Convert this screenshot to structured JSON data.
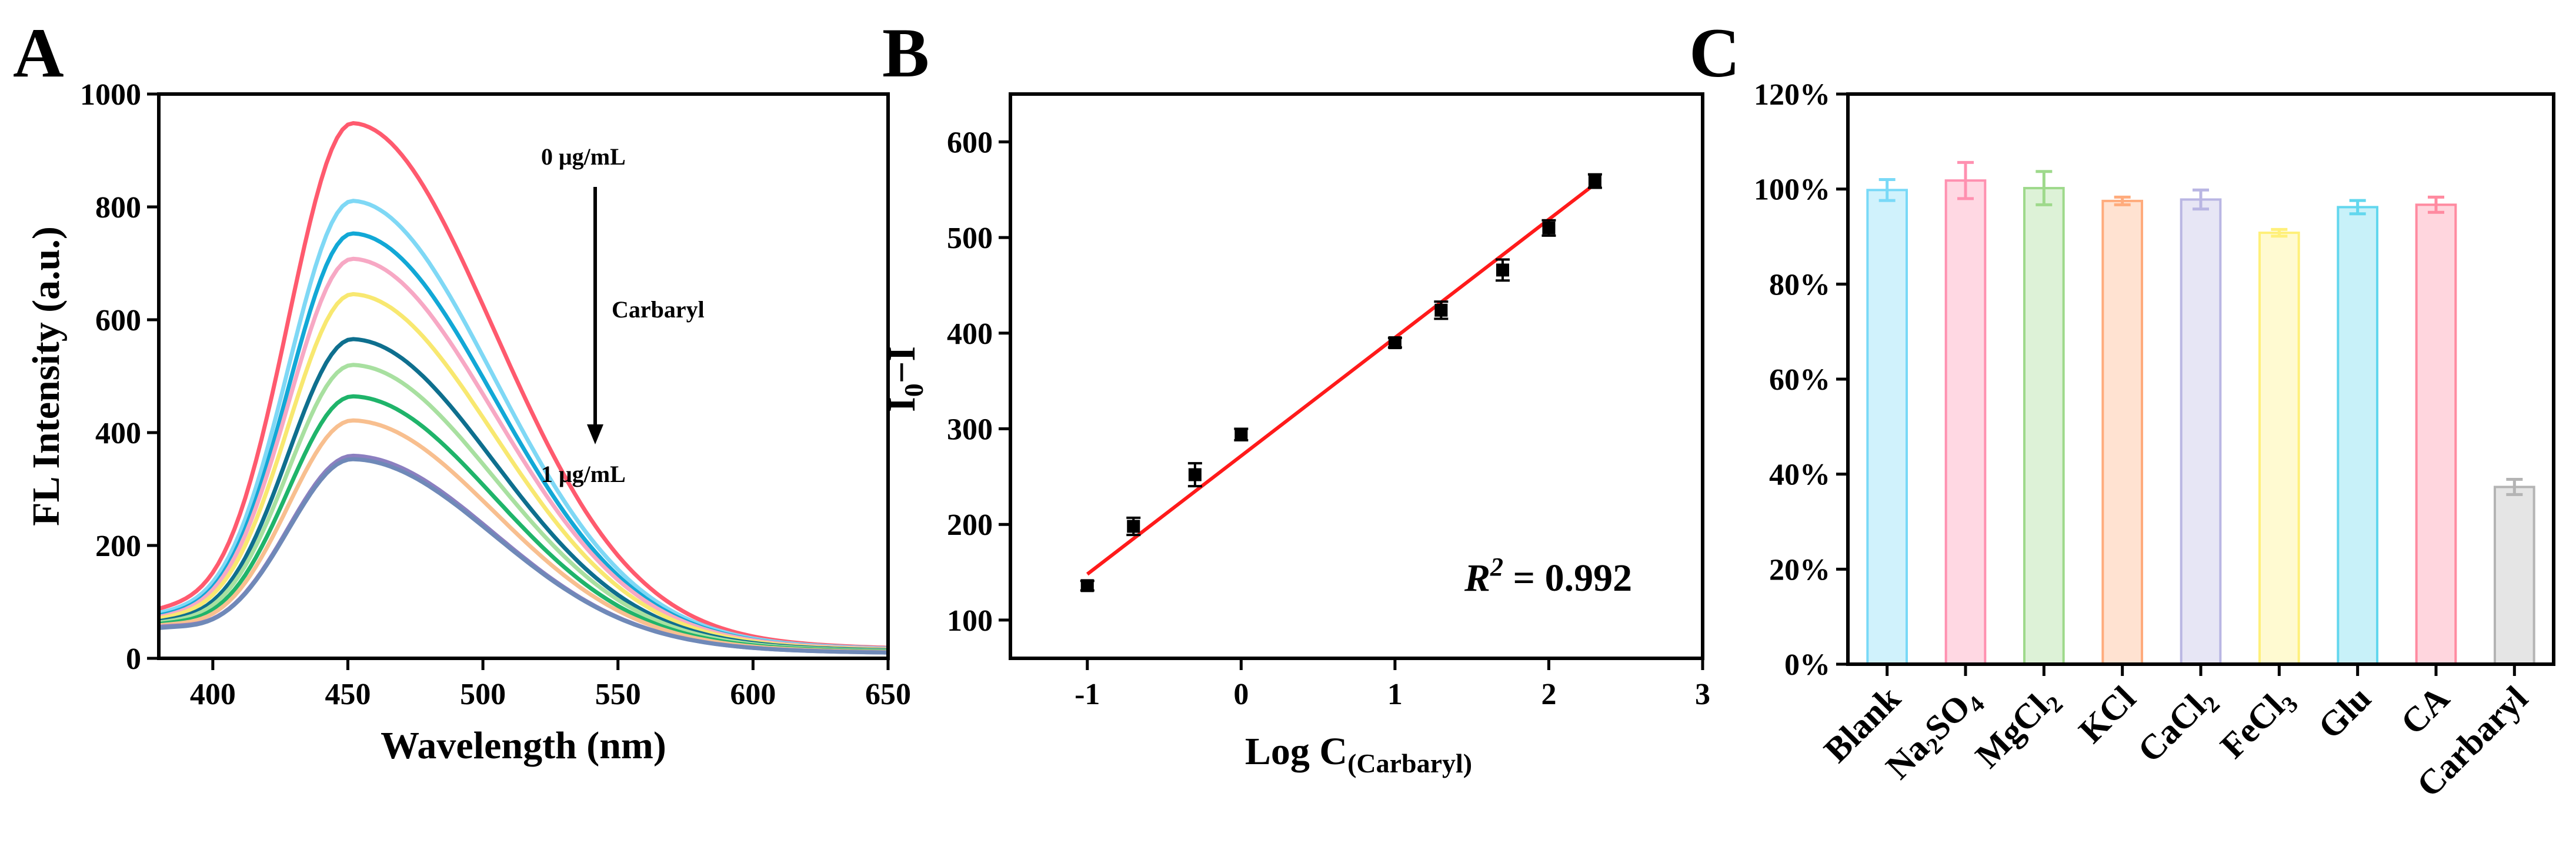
{
  "panels": {
    "a": {
      "label": "A"
    },
    "b": {
      "label": "B"
    },
    "c": {
      "label": "C"
    }
  },
  "chart_data": [
    {
      "type": "line",
      "panel": "A",
      "xlabel": "Wavelength (nm)",
      "ylabel": "FL Intensity (a.u.)",
      "xlim": [
        380,
        650
      ],
      "ylim": [
        0,
        1000
      ],
      "xticks": [
        "400",
        "450",
        "500",
        "550",
        "600",
        "650"
      ],
      "yticks": [
        "0",
        "200",
        "400",
        "600",
        "800",
        "1000"
      ],
      "annotations": {
        "top": "0 μg/mL",
        "middle": "Carbaryl",
        "bottom": "1 μg/mL"
      },
      "peak_wavelength": 452,
      "series": [
        {
          "peak": 920,
          "baseline_380": 78,
          "tail_650": 18,
          "color": "#ff5a6e"
        },
        {
          "peak": 785,
          "baseline_380": 72,
          "tail_650": 17,
          "color": "#7fd8f5"
        },
        {
          "peak": 730,
          "baseline_380": 68,
          "tail_650": 16,
          "color": "#12a8d6"
        },
        {
          "peak": 685,
          "baseline_380": 66,
          "tail_650": 16,
          "color": "#f7a8c4"
        },
        {
          "peak": 625,
          "baseline_380": 64,
          "tail_650": 15,
          "color": "#f8e870"
        },
        {
          "peak": 548,
          "baseline_380": 60,
          "tail_650": 14,
          "color": "#0e6f8e"
        },
        {
          "peak": 505,
          "baseline_380": 58,
          "tail_650": 13,
          "color": "#a8e0a0"
        },
        {
          "peak": 452,
          "baseline_380": 56,
          "tail_650": 12,
          "color": "#1fb46a"
        },
        {
          "peak": 412,
          "baseline_380": 54,
          "tail_650": 11,
          "color": "#f8bf8f"
        },
        {
          "peak": 352,
          "baseline_380": 52,
          "tail_650": 10,
          "color": "#8c7fc0"
        },
        {
          "peak": 346,
          "baseline_380": 50,
          "tail_650": 10,
          "color": "#6f89b8"
        }
      ]
    },
    {
      "type": "scatter",
      "panel": "B",
      "xlabel": "Log C(Carbaryl)",
      "ylabel": "I0−I",
      "xlim": [
        -1.5,
        3
      ],
      "ylim": [
        60,
        650
      ],
      "xticks": [
        "-1",
        "0",
        "1",
        "2",
        "3"
      ],
      "yticks": [
        "100",
        "200",
        "300",
        "400",
        "500",
        "600"
      ],
      "points": [
        {
          "x": -1.0,
          "y": 136,
          "err": 5
        },
        {
          "x": -0.7,
          "y": 198,
          "err": 9
        },
        {
          "x": -0.3,
          "y": 252,
          "err": 12
        },
        {
          "x": 0.0,
          "y": 294,
          "err": 6
        },
        {
          "x": 1.0,
          "y": 390,
          "err": 5
        },
        {
          "x": 1.3,
          "y": 424,
          "err": 9
        },
        {
          "x": 1.7,
          "y": 466,
          "err": 11
        },
        {
          "x": 2.0,
          "y": 510,
          "err": 8
        },
        {
          "x": 2.3,
          "y": 559,
          "err": 7
        }
      ],
      "fit": {
        "x": [
          -1.0,
          2.3
        ],
        "y": [
          148,
          556
        ],
        "color": "#ff1a1a"
      },
      "r2_symbol": "R",
      "r2_exponent": "2",
      "r2_value": " = 0.992"
    },
    {
      "type": "bar",
      "panel": "C",
      "ylim": [
        0,
        120
      ],
      "yticks": [
        "0%",
        "20%",
        "40%",
        "60%",
        "80%",
        "100%",
        "120%"
      ],
      "categories": [
        {
          "parts": [
            {
              "t": "Blank"
            }
          ]
        },
        {
          "parts": [
            {
              "t": "Na"
            },
            {
              "t": "2",
              "sub": true
            },
            {
              "t": "SO"
            },
            {
              "t": "4",
              "sub": true
            }
          ]
        },
        {
          "parts": [
            {
              "t": "MgCl"
            },
            {
              "t": "2",
              "sub": true
            }
          ]
        },
        {
          "parts": [
            {
              "t": "KCl"
            }
          ]
        },
        {
          "parts": [
            {
              "t": "CaCl"
            },
            {
              "t": "2",
              "sub": true
            }
          ]
        },
        {
          "parts": [
            {
              "t": "FeCl"
            },
            {
              "t": "3",
              "sub": true
            }
          ]
        },
        {
          "parts": [
            {
              "t": "Glu"
            }
          ]
        },
        {
          "parts": [
            {
              "t": "CA"
            }
          ]
        },
        {
          "parts": [
            {
              "t": "Carbaryl"
            }
          ]
        }
      ],
      "values": [
        99.8,
        101.8,
        100.2,
        97.5,
        97.8,
        90.8,
        96.2,
        96.7,
        37.3
      ],
      "errors": [
        2.2,
        3.8,
        3.5,
        0.8,
        2.0,
        0.7,
        1.4,
        1.6,
        1.6
      ],
      "colors": [
        "#79d9f7",
        "#ff90b0",
        "#9ed98b",
        "#ffab7c",
        "#b9b6e3",
        "#fff07a",
        "#62d7ee",
        "#ff8aa0",
        "#b4b4b4"
      ]
    }
  ]
}
